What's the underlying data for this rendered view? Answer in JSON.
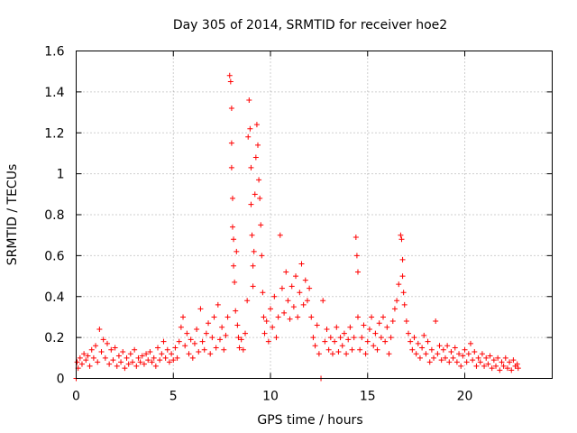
{
  "chart_data": {
    "type": "scatter",
    "title": "Day 305 of 2014, SRMTID for receiver hoe2",
    "xlabel": "GPS time / hours",
    "ylabel": "SRMTID / TECUs",
    "xlim": [
      0,
      24.5
    ],
    "ylim": [
      0,
      1.6
    ],
    "x_ticks": [
      0,
      5,
      10,
      15,
      20
    ],
    "x_tick_labels": [
      "0",
      "5",
      "10",
      "15",
      "20"
    ],
    "y_ticks": [
      0,
      0.2,
      0.4,
      0.6,
      0.8,
      1,
      1.2,
      1.4,
      1.6
    ],
    "y_tick_labels": [
      "0",
      "0.2",
      "0.4",
      "0.6",
      "0.8",
      "1",
      "1.2",
      "1.4",
      "1.6"
    ],
    "grid": true,
    "marker": "plus",
    "color": "#ff0000",
    "series": [
      {
        "name": "SRMTID",
        "points": [
          [
            0.0,
            0.0
          ],
          [
            0.05,
            0.08
          ],
          [
            0.1,
            0.05
          ],
          [
            0.2,
            0.1
          ],
          [
            0.3,
            0.07
          ],
          [
            0.4,
            0.12
          ],
          [
            0.5,
            0.09
          ],
          [
            0.6,
            0.11
          ],
          [
            0.7,
            0.06
          ],
          [
            0.8,
            0.14
          ],
          [
            0.9,
            0.1
          ],
          [
            1.0,
            0.16
          ],
          [
            1.1,
            0.08
          ],
          [
            1.2,
            0.24
          ],
          [
            1.3,
            0.13
          ],
          [
            1.4,
            0.19
          ],
          [
            1.5,
            0.1
          ],
          [
            1.6,
            0.17
          ],
          [
            1.7,
            0.07
          ],
          [
            1.8,
            0.14
          ],
          [
            1.9,
            0.09
          ],
          [
            2.0,
            0.15
          ],
          [
            2.1,
            0.06
          ],
          [
            2.2,
            0.11
          ],
          [
            2.3,
            0.08
          ],
          [
            2.4,
            0.13
          ],
          [
            2.5,
            0.05
          ],
          [
            2.6,
            0.1
          ],
          [
            2.7,
            0.07
          ],
          [
            2.8,
            0.12
          ],
          [
            2.9,
            0.08
          ],
          [
            3.0,
            0.14
          ],
          [
            3.1,
            0.06
          ],
          [
            3.2,
            0.1
          ],
          [
            3.3,
            0.08
          ],
          [
            3.4,
            0.11
          ],
          [
            3.5,
            0.07
          ],
          [
            3.6,
            0.12
          ],
          [
            3.7,
            0.09
          ],
          [
            3.8,
            0.13
          ],
          [
            3.9,
            0.08
          ],
          [
            4.0,
            0.1
          ],
          [
            4.1,
            0.06
          ],
          [
            4.2,
            0.15
          ],
          [
            4.3,
            0.09
          ],
          [
            4.4,
            0.12
          ],
          [
            4.5,
            0.18
          ],
          [
            4.6,
            0.1
          ],
          [
            4.7,
            0.14
          ],
          [
            4.8,
            0.08
          ],
          [
            4.9,
            0.12
          ],
          [
            5.0,
            0.09
          ],
          [
            5.1,
            0.15
          ],
          [
            5.2,
            0.1
          ],
          [
            5.3,
            0.18
          ],
          [
            5.4,
            0.25
          ],
          [
            5.5,
            0.3
          ],
          [
            5.6,
            0.16
          ],
          [
            5.7,
            0.22
          ],
          [
            5.8,
            0.12
          ],
          [
            5.9,
            0.19
          ],
          [
            6.0,
            0.1
          ],
          [
            6.1,
            0.17
          ],
          [
            6.2,
            0.24
          ],
          [
            6.3,
            0.13
          ],
          [
            6.4,
            0.34
          ],
          [
            6.5,
            0.18
          ],
          [
            6.6,
            0.14
          ],
          [
            6.7,
            0.22
          ],
          [
            6.8,
            0.27
          ],
          [
            6.9,
            0.12
          ],
          [
            7.0,
            0.2
          ],
          [
            7.1,
            0.3
          ],
          [
            7.2,
            0.15
          ],
          [
            7.3,
            0.36
          ],
          [
            7.4,
            0.19
          ],
          [
            7.5,
            0.25
          ],
          [
            7.6,
            0.14
          ],
          [
            7.7,
            0.21
          ],
          [
            7.8,
            0.3
          ],
          [
            7.9,
            1.48
          ],
          [
            7.95,
            1.45
          ],
          [
            8.0,
            1.32
          ],
          [
            8.0,
            1.15
          ],
          [
            8.0,
            1.03
          ],
          [
            8.05,
            0.88
          ],
          [
            8.05,
            0.74
          ],
          [
            8.1,
            0.68
          ],
          [
            8.1,
            0.55
          ],
          [
            8.15,
            0.47
          ],
          [
            8.2,
            0.33
          ],
          [
            8.25,
            0.62
          ],
          [
            8.3,
            0.26
          ],
          [
            8.35,
            0.2
          ],
          [
            8.4,
            0.15
          ],
          [
            8.5,
            0.19
          ],
          [
            8.6,
            0.14
          ],
          [
            8.7,
            0.22
          ],
          [
            8.8,
            0.38
          ],
          [
            8.85,
            1.18
          ],
          [
            8.9,
            1.36
          ],
          [
            8.95,
            1.22
          ],
          [
            9.0,
            1.03
          ],
          [
            9.0,
            0.85
          ],
          [
            9.05,
            0.7
          ],
          [
            9.1,
            0.55
          ],
          [
            9.1,
            0.45
          ],
          [
            9.15,
            0.62
          ],
          [
            9.2,
            0.9
          ],
          [
            9.25,
            1.08
          ],
          [
            9.3,
            1.24
          ],
          [
            9.35,
            1.14
          ],
          [
            9.4,
            0.97
          ],
          [
            9.45,
            0.88
          ],
          [
            9.5,
            0.75
          ],
          [
            9.55,
            0.6
          ],
          [
            9.6,
            0.42
          ],
          [
            9.65,
            0.3
          ],
          [
            9.7,
            0.22
          ],
          [
            9.8,
            0.28
          ],
          [
            9.9,
            0.18
          ],
          [
            10.0,
            0.34
          ],
          [
            10.1,
            0.25
          ],
          [
            10.2,
            0.4
          ],
          [
            10.3,
            0.2
          ],
          [
            10.4,
            0.3
          ],
          [
            10.5,
            0.7
          ],
          [
            10.6,
            0.44
          ],
          [
            10.7,
            0.32
          ],
          [
            10.8,
            0.52
          ],
          [
            10.9,
            0.38
          ],
          [
            11.0,
            0.29
          ],
          [
            11.1,
            0.45
          ],
          [
            11.2,
            0.35
          ],
          [
            11.3,
            0.5
          ],
          [
            11.4,
            0.3
          ],
          [
            11.5,
            0.42
          ],
          [
            11.6,
            0.56
          ],
          [
            11.7,
            0.36
          ],
          [
            11.8,
            0.48
          ],
          [
            11.9,
            0.38
          ],
          [
            12.0,
            0.44
          ],
          [
            12.1,
            0.3
          ],
          [
            12.2,
            0.2
          ],
          [
            12.3,
            0.16
          ],
          [
            12.4,
            0.26
          ],
          [
            12.5,
            0.12
          ],
          [
            12.6,
            0.0
          ],
          [
            12.7,
            0.38
          ],
          [
            12.8,
            0.18
          ],
          [
            12.9,
            0.24
          ],
          [
            13.0,
            0.14
          ],
          [
            13.1,
            0.2
          ],
          [
            13.2,
            0.12
          ],
          [
            13.3,
            0.18
          ],
          [
            13.4,
            0.25
          ],
          [
            13.5,
            0.13
          ],
          [
            13.6,
            0.2
          ],
          [
            13.7,
            0.16
          ],
          [
            13.8,
            0.22
          ],
          [
            13.9,
            0.12
          ],
          [
            14.0,
            0.19
          ],
          [
            14.1,
            0.25
          ],
          [
            14.2,
            0.14
          ],
          [
            14.3,
            0.2
          ],
          [
            14.4,
            0.69
          ],
          [
            14.45,
            0.6
          ],
          [
            14.5,
            0.52
          ],
          [
            14.5,
            0.3
          ],
          [
            14.6,
            0.14
          ],
          [
            14.7,
            0.2
          ],
          [
            14.8,
            0.26
          ],
          [
            14.9,
            0.12
          ],
          [
            15.0,
            0.18
          ],
          [
            15.1,
            0.24
          ],
          [
            15.2,
            0.3
          ],
          [
            15.3,
            0.16
          ],
          [
            15.4,
            0.22
          ],
          [
            15.5,
            0.14
          ],
          [
            15.6,
            0.27
          ],
          [
            15.7,
            0.2
          ],
          [
            15.8,
            0.3
          ],
          [
            15.9,
            0.18
          ],
          [
            16.0,
            0.25
          ],
          [
            16.1,
            0.12
          ],
          [
            16.2,
            0.2
          ],
          [
            16.3,
            0.28
          ],
          [
            16.4,
            0.34
          ],
          [
            16.5,
            0.38
          ],
          [
            16.6,
            0.46
          ],
          [
            16.7,
            0.7
          ],
          [
            16.75,
            0.68
          ],
          [
            16.8,
            0.58
          ],
          [
            16.8,
            0.5
          ],
          [
            16.85,
            0.42
          ],
          [
            16.9,
            0.36
          ],
          [
            17.0,
            0.28
          ],
          [
            17.1,
            0.22
          ],
          [
            17.2,
            0.18
          ],
          [
            17.3,
            0.14
          ],
          [
            17.4,
            0.2
          ],
          [
            17.5,
            0.12
          ],
          [
            17.6,
            0.17
          ],
          [
            17.7,
            0.1
          ],
          [
            17.8,
            0.15
          ],
          [
            17.9,
            0.21
          ],
          [
            18.0,
            0.12
          ],
          [
            18.1,
            0.18
          ],
          [
            18.2,
            0.08
          ],
          [
            18.3,
            0.14
          ],
          [
            18.4,
            0.1
          ],
          [
            18.5,
            0.28
          ],
          [
            18.6,
            0.12
          ],
          [
            18.7,
            0.16
          ],
          [
            18.8,
            0.09
          ],
          [
            18.9,
            0.14
          ],
          [
            19.0,
            0.1
          ],
          [
            19.1,
            0.16
          ],
          [
            19.2,
            0.08
          ],
          [
            19.3,
            0.13
          ],
          [
            19.4,
            0.1
          ],
          [
            19.5,
            0.15
          ],
          [
            19.6,
            0.08
          ],
          [
            19.7,
            0.12
          ],
          [
            19.8,
            0.06
          ],
          [
            19.9,
            0.11
          ],
          [
            20.0,
            0.14
          ],
          [
            20.1,
            0.08
          ],
          [
            20.2,
            0.12
          ],
          [
            20.3,
            0.17
          ],
          [
            20.4,
            0.09
          ],
          [
            20.5,
            0.13
          ],
          [
            20.6,
            0.06
          ],
          [
            20.7,
            0.1
          ],
          [
            20.8,
            0.08
          ],
          [
            20.9,
            0.12
          ],
          [
            21.0,
            0.06
          ],
          [
            21.1,
            0.1
          ],
          [
            21.2,
            0.07
          ],
          [
            21.3,
            0.11
          ],
          [
            21.4,
            0.05
          ],
          [
            21.5,
            0.09
          ],
          [
            21.6,
            0.06
          ],
          [
            21.7,
            0.1
          ],
          [
            21.8,
            0.04
          ],
          [
            21.9,
            0.08
          ],
          [
            22.0,
            0.06
          ],
          [
            22.1,
            0.1
          ],
          [
            22.2,
            0.05
          ],
          [
            22.3,
            0.08
          ],
          [
            22.4,
            0.04
          ],
          [
            22.5,
            0.09
          ],
          [
            22.6,
            0.06
          ],
          [
            22.7,
            0.07
          ],
          [
            22.75,
            0.05
          ]
        ]
      }
    ]
  }
}
